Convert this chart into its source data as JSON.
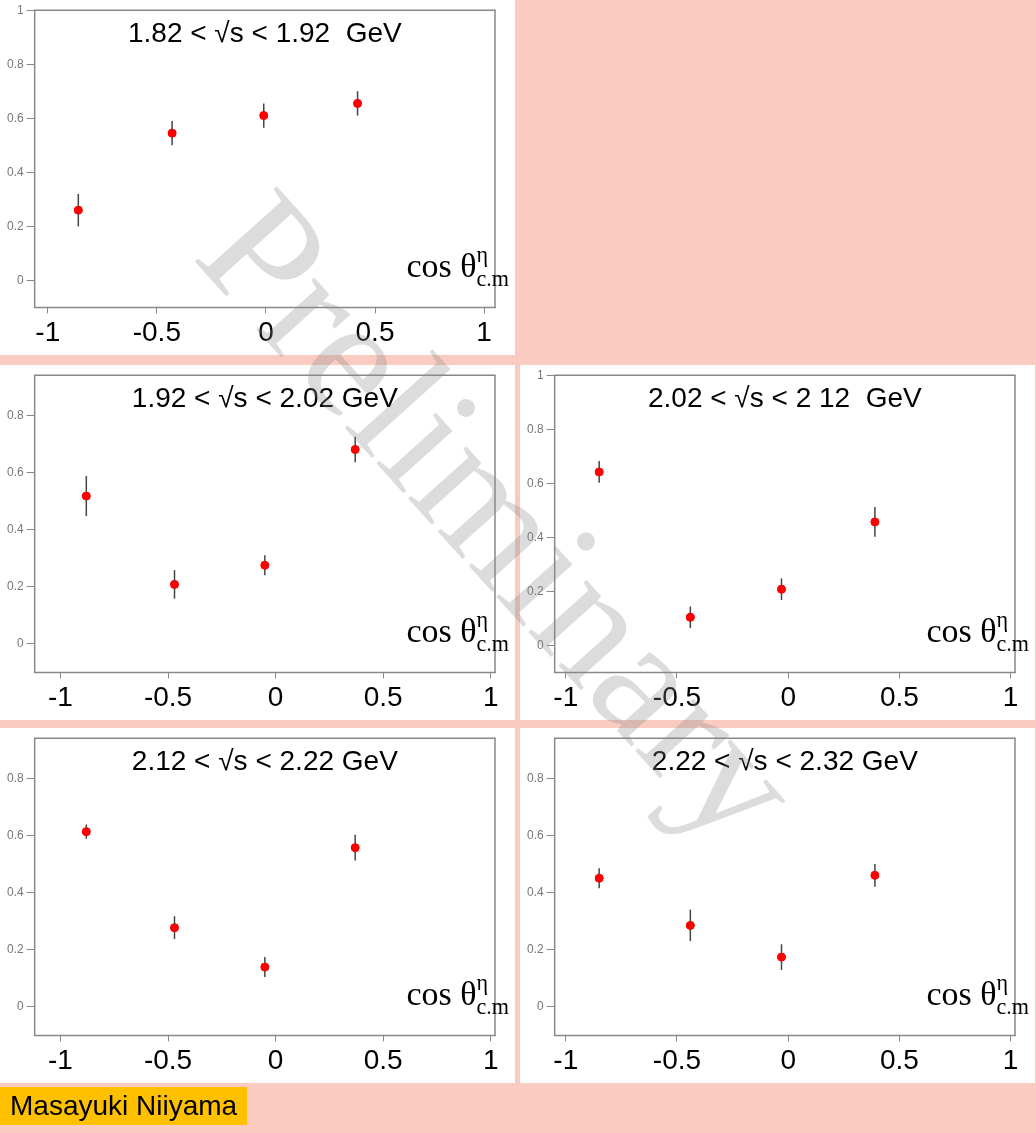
{
  "chart_data": [
    {
      "type": "scatter",
      "title": "1.82 < √s < 1.92  GeV",
      "xlabel": "cos θ$^{η}$$_{c.m}$",
      "annotations": [
        "Preliminary"
      ],
      "x": [
        -0.86,
        -0.43,
        -0.01,
        0.42
      ],
      "values": [
        0.26,
        0.545,
        0.61,
        0.655
      ],
      "errors": [
        0.06,
        0.045,
        0.045,
        0.045
      ],
      "color": "#ff0000",
      "marker": "circle",
      "xlim": [
        -1.06,
        1.05
      ],
      "xticks": [
        -1,
        -0.5,
        0,
        0.5,
        1
      ],
      "ylim": [
        -0.1,
        1
      ],
      "yticks": [
        0,
        0.2,
        0.4,
        0.6,
        0.8,
        1
      ]
    },
    {
      "type": "scatter",
      "title": "1.92 < √s < 2.02 GeV",
      "xlabel": "cos θ$^{η}$$_{c.m}$",
      "x": [
        -0.88,
        -0.47,
        -0.05,
        0.37
      ],
      "values": [
        0.517,
        0.208,
        0.275,
        0.68
      ],
      "errors": [
        0.07,
        0.05,
        0.035,
        0.045
      ],
      "color": "#ff0000",
      "marker": "circle",
      "xlim": [
        -1.12,
        1.02
      ],
      "xticks": [
        -1,
        -0.5,
        0,
        0.5,
        1
      ],
      "ylim": [
        -0.1,
        0.94
      ],
      "yticks": [
        0,
        0.2,
        0.4,
        0.6,
        0.8
      ]
    },
    {
      "type": "scatter",
      "title": "2.02 < √s < 2 12  GeV",
      "xlabel": "cos θ$^{η}$$_{c.m}$",
      "x": [
        -0.85,
        -0.44,
        -0.03,
        0.39
      ],
      "values": [
        0.642,
        0.104,
        0.208,
        0.457
      ],
      "errors": [
        0.04,
        0.04,
        0.04,
        0.055
      ],
      "color": "#ff0000",
      "marker": "circle",
      "xlim": [
        -1.05,
        1.02
      ],
      "xticks": [
        -1,
        -0.5,
        0,
        0.5,
        1
      ],
      "ylim": [
        -0.1,
        1
      ],
      "yticks": [
        0,
        0.2,
        0.4,
        0.6,
        0.8,
        1
      ]
    },
    {
      "type": "scatter",
      "title": "2.12 < √s < 2.22 GeV",
      "xlabel": "cos θ$^{η}$$_{c.m}$",
      "annotations": [
        "Masayuki Niiyama"
      ],
      "x": [
        -0.88,
        -0.47,
        -0.05,
        0.37
      ],
      "values": [
        0.613,
        0.277,
        0.139,
        0.557
      ],
      "errors": [
        0.025,
        0.04,
        0.035,
        0.045
      ],
      "color": "#ff0000",
      "marker": "circle",
      "xlim": [
        -1.12,
        1.02
      ],
      "xticks": [
        -1,
        -0.5,
        0,
        0.5,
        1
      ],
      "ylim": [
        -0.1,
        0.94
      ],
      "yticks": [
        0,
        0.2,
        0.4,
        0.6,
        0.8
      ]
    },
    {
      "type": "scatter",
      "title": "2.22 < √s < 2.32 GeV",
      "xlabel": "cos θ$^{η}$$_{c.m}$",
      "x": [
        -0.85,
        -0.44,
        -0.03,
        0.39
      ],
      "values": [
        0.45,
        0.285,
        0.174,
        0.46
      ],
      "errors": [
        0.035,
        0.055,
        0.045,
        0.04
      ],
      "color": "#ff0000",
      "marker": "circle",
      "xlim": [
        -1.05,
        1.02
      ],
      "xticks": [
        -1,
        -0.5,
        0,
        0.5,
        1
      ],
      "ylim": [
        -0.1,
        0.94
      ],
      "yticks": [
        0,
        0.2,
        0.4,
        0.6,
        0.8
      ]
    }
  ]
}
